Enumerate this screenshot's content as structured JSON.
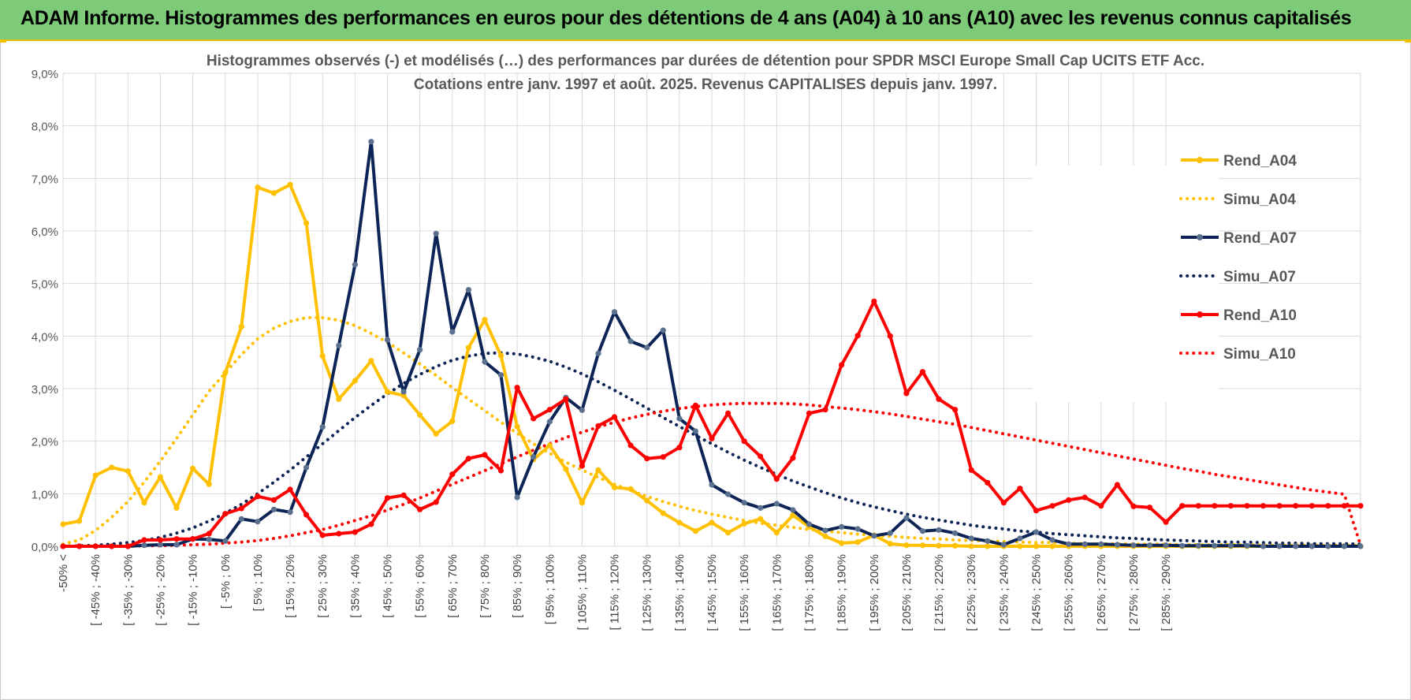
{
  "header": {
    "title": "ADAM Informe. Histogrammes des performances en euros pour des détentions de 4 ans (A04) à 10 ans (A10) avec les revenus connus capitalisés"
  },
  "colors": {
    "header_bg": "#7dca79",
    "A04": "#ffc000",
    "A07": "#0d2556",
    "A10": "#ff0000",
    "grid": "#d9d9d9"
  },
  "chart_data": {
    "type": "line",
    "title": "Histogrammes observés (-) et modélisés (…) des performances par durées de détention pour SPDR MSCI Europe Small Cap UCITS ETF Acc.",
    "subtitle": "Cotations entre janv. 1997 et août. 2025. Revenus CAPITALISES depuis janv. 1997.",
    "ylim": [
      0,
      9
    ],
    "y_ticks": [
      "0,0%",
      "1,0%",
      "2,0%",
      "3,0%",
      "4,0%",
      "5,0%",
      "6,0%",
      "7,0%",
      "8,0%",
      "9,0%"
    ],
    "grid": true,
    "legend_position": "right",
    "x_tick_labels": [
      "-50% <",
      "[ -45% ; -40%",
      "[ -35% ; -30%",
      "[ -25% ; -20%",
      "[ -15% ; -10%",
      "[ -5% ; 0%",
      "[ 5% ; 10%",
      "[ 15% ; 20%",
      "[ 25% ; 30%",
      "[ 35% ; 40%",
      "[ 45% ; 50%",
      "[ 55% ; 60%",
      "[ 65% ; 70%",
      "[ 75% ; 80%",
      "[ 85% ; 90%",
      "[ 95% ; 100%",
      "[ 105% ; 110%",
      "[ 115% ; 120%",
      "[ 125% ; 130%",
      "[ 135% ; 140%",
      "[ 145% ; 150%",
      "[ 155% ; 160%",
      "[ 165% ; 170%",
      "[ 175% ; 180%",
      "[ 185% ; 190%",
      "[ 195% ; 200%",
      "[ 205% ; 210%",
      "[ 215% ; 220%",
      "[ 225% ; 230%",
      "[ 235% ; 240%",
      "[ 245% ; 250%",
      "[ 255% ; 260%",
      "[ 265% ; 270%",
      "[ 275% ; 280%",
      "[ 285% ; 290%"
    ],
    "series": [
      {
        "name": "Rend_A04",
        "style": "solid",
        "color": "#ffc000",
        "values": [
          0.42,
          0.48,
          1.35,
          1.5,
          1.43,
          0.83,
          1.32,
          0.73,
          1.48,
          1.18,
          3.3,
          4.18,
          6.83,
          6.72,
          6.88,
          6.15,
          3.62,
          2.8,
          3.15,
          3.53,
          2.94,
          2.87,
          2.5,
          2.14,
          2.38,
          3.78,
          4.31,
          3.63,
          2.28,
          1.65,
          1.92,
          1.47,
          0.83,
          1.45,
          1.12,
          1.09,
          0.87,
          0.63,
          0.45,
          0.29,
          0.45,
          0.26,
          0.43,
          0.52,
          0.26,
          0.59,
          0.37,
          0.19,
          0.06,
          0.08,
          0.21,
          0.05,
          0.02,
          0.02,
          0.01,
          0.01,
          0.0,
          0.0,
          0.0,
          0.0,
          0.0,
          0.0,
          0.0,
          0.0,
          0.0,
          0.0,
          0.0,
          0.0,
          0.0,
          0.0,
          0.0,
          0.0,
          0.0,
          0.0,
          0.0,
          0.0,
          0.0,
          0.0,
          0.0,
          0.0,
          0.0
        ]
      },
      {
        "name": "Simu_A04",
        "style": "dotted",
        "color": "#ffc000",
        "values": [
          0.04,
          0.12,
          0.3,
          0.55,
          0.85,
          1.22,
          1.62,
          2.05,
          2.5,
          2.95,
          3.3,
          3.65,
          3.95,
          4.15,
          4.28,
          4.35,
          4.35,
          4.3,
          4.2,
          4.05,
          3.88,
          3.68,
          3.47,
          3.25,
          3.02,
          2.8,
          2.58,
          2.36,
          2.15,
          1.95,
          1.77,
          1.6,
          1.45,
          1.31,
          1.18,
          1.06,
          0.95,
          0.85,
          0.76,
          0.68,
          0.61,
          0.55,
          0.49,
          0.44,
          0.4,
          0.36,
          0.32,
          0.29,
          0.26,
          0.23,
          0.21,
          0.19,
          0.17,
          0.15,
          0.14,
          0.12,
          0.11,
          0.1,
          0.09,
          0.08,
          0.07,
          0.07,
          0.06,
          0.05,
          0.05,
          0.05,
          0.04,
          0.04,
          0.04,
          0.03,
          0.03,
          0.03,
          0.03,
          0.03,
          0.02,
          0.02,
          0.02,
          0.02,
          0.02,
          0.02,
          0.02
        ]
      },
      {
        "name": "Rend_A07",
        "style": "solid",
        "color": "#0d2556",
        "values": [
          0.0,
          0.0,
          0.0,
          0.0,
          0.0,
          0.02,
          0.03,
          0.03,
          0.14,
          0.13,
          0.1,
          0.52,
          0.47,
          0.7,
          0.65,
          1.5,
          2.27,
          3.82,
          5.36,
          7.7,
          3.93,
          2.94,
          3.74,
          5.95,
          4.08,
          4.88,
          3.51,
          3.26,
          0.93,
          1.7,
          2.37,
          2.83,
          2.59,
          3.67,
          4.46,
          3.9,
          3.78,
          4.11,
          2.43,
          2.19,
          1.17,
          0.99,
          0.83,
          0.73,
          0.81,
          0.69,
          0.42,
          0.3,
          0.37,
          0.33,
          0.2,
          0.25,
          0.54,
          0.29,
          0.31,
          0.25,
          0.15,
          0.1,
          0.03,
          0.15,
          0.27,
          0.12,
          0.04,
          0.04,
          0.04,
          0.03,
          0.02,
          0.02,
          0.02,
          0.01,
          0.01,
          0.01,
          0.01,
          0.01,
          0.0,
          0.0,
          0.0,
          0.0,
          0.0,
          0.0,
          0.0
        ]
      },
      {
        "name": "Simu_A07",
        "style": "dotted",
        "color": "#0d2556",
        "values": [
          0.0,
          0.01,
          0.02,
          0.04,
          0.07,
          0.11,
          0.17,
          0.25,
          0.35,
          0.48,
          0.63,
          0.8,
          1.0,
          1.22,
          1.45,
          1.7,
          1.95,
          2.2,
          2.45,
          2.68,
          2.9,
          3.1,
          3.27,
          3.42,
          3.54,
          3.62,
          3.67,
          3.68,
          3.66,
          3.6,
          3.52,
          3.41,
          3.28,
          3.13,
          2.97,
          2.8,
          2.63,
          2.45,
          2.28,
          2.11,
          1.95,
          1.79,
          1.64,
          1.5,
          1.37,
          1.24,
          1.13,
          1.02,
          0.92,
          0.83,
          0.75,
          0.68,
          0.61,
          0.55,
          0.5,
          0.45,
          0.4,
          0.36,
          0.33,
          0.29,
          0.27,
          0.24,
          0.22,
          0.2,
          0.18,
          0.16,
          0.15,
          0.13,
          0.12,
          0.11,
          0.1,
          0.09,
          0.08,
          0.08,
          0.07,
          0.06,
          0.06,
          0.05,
          0.05,
          0.05,
          0.04
        ]
      },
      {
        "name": "Rend_A10",
        "style": "solid",
        "color": "#ff0000",
        "values": [
          0.0,
          0.0,
          0.0,
          0.0,
          0.0,
          0.12,
          0.12,
          0.14,
          0.14,
          0.24,
          0.62,
          0.72,
          0.95,
          0.88,
          1.08,
          0.6,
          0.21,
          0.24,
          0.27,
          0.42,
          0.92,
          0.97,
          0.7,
          0.84,
          1.37,
          1.67,
          1.74,
          1.44,
          3.02,
          2.43,
          2.6,
          2.8,
          1.53,
          2.29,
          2.46,
          1.92,
          1.67,
          1.7,
          1.88,
          2.68,
          2.05,
          2.53,
          2.0,
          1.71,
          1.28,
          1.68,
          2.53,
          2.6,
          3.45,
          4.01,
          4.66,
          4.0,
          2.91,
          3.32,
          2.8,
          2.6,
          1.45,
          1.21,
          0.83,
          1.1,
          0.68,
          0.77,
          0.88,
          0.93,
          0.77,
          1.17,
          0.76,
          0.74,
          0.46,
          0.77,
          0.77,
          0.77,
          0.77,
          0.77,
          0.77,
          0.77,
          0.77,
          0.77,
          0.77,
          0.77,
          0.77
        ]
      },
      {
        "name": "Simu_A10",
        "style": "dotted",
        "color": "#ff0000",
        "values": [
          0.0,
          0.0,
          0.0,
          0.0,
          0.0,
          0.01,
          0.01,
          0.02,
          0.03,
          0.04,
          0.06,
          0.08,
          0.11,
          0.15,
          0.2,
          0.26,
          0.32,
          0.4,
          0.49,
          0.58,
          0.69,
          0.8,
          0.92,
          1.05,
          1.18,
          1.31,
          1.44,
          1.57,
          1.7,
          1.83,
          1.95,
          2.07,
          2.17,
          2.27,
          2.36,
          2.44,
          2.51,
          2.57,
          2.62,
          2.66,
          2.69,
          2.71,
          2.72,
          2.72,
          2.72,
          2.71,
          2.69,
          2.66,
          2.63,
          2.6,
          2.56,
          2.52,
          2.47,
          2.42,
          2.37,
          2.32,
          2.26,
          2.2,
          2.14,
          2.08,
          2.02,
          1.96,
          1.9,
          1.84,
          1.78,
          1.72,
          1.66,
          1.6,
          1.54,
          1.48,
          1.43,
          1.37,
          1.32,
          1.27,
          1.22,
          1.17,
          1.12,
          1.07,
          1.03,
          0.99,
          0.02
        ]
      }
    ]
  }
}
